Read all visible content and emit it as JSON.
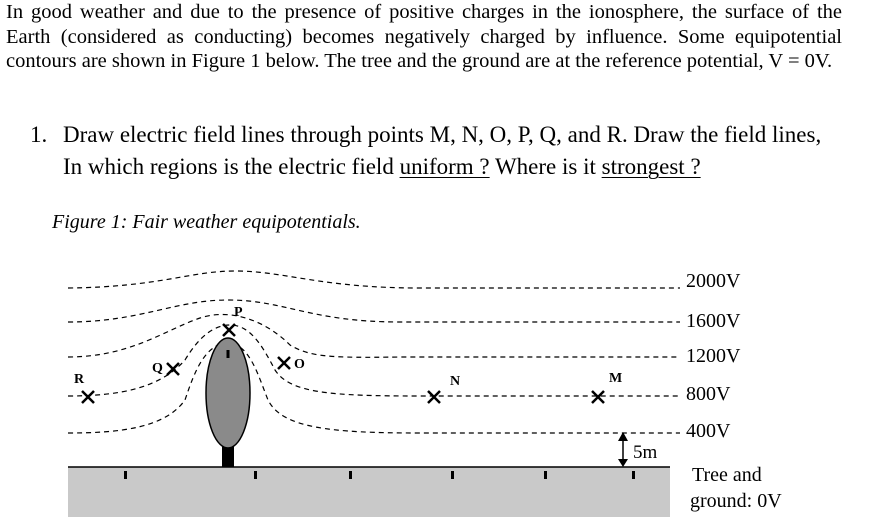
{
  "paragraph": "In good weather and due to the presence of positive charges in the ionosphere, the surface of the Earth (considered as conducting) becomes negatively charged by influence. Some equipotential contours are shown in Figure 1 below. The tree and the ground are at the reference potential, V = 0V.",
  "question": {
    "number": "1.",
    "line1": "Draw electric field lines through points M, N, O, P, Q, and R. Draw the field lines,",
    "line2": [
      "In which regions is the electric field ",
      "uniform ?",
      " Where is it ",
      "strongest ?"
    ]
  },
  "figure": {
    "caption": "Figure 1: Fair weather equipotentials.",
    "potentials": [
      "2000V",
      "1600V",
      "1200V",
      "800V",
      "400V"
    ],
    "points": [
      "R",
      "Q",
      "P",
      "O",
      "N",
      "M"
    ],
    "scale": "5m",
    "ground_label": [
      "Tree and",
      "ground: 0V"
    ]
  }
}
